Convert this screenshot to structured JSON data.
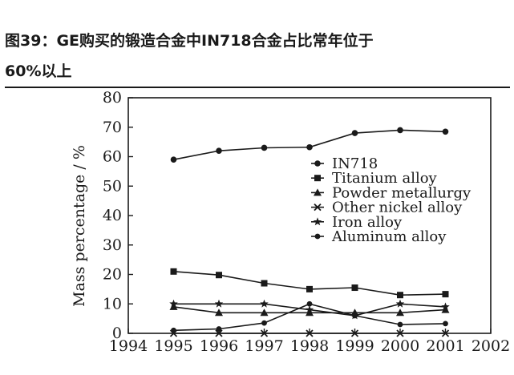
{
  "header": {
    "title_line1": "图39：GE购买的锻造合金中IN718合金占比常年位于",
    "title_line2": "60%以上"
  },
  "chart_data": {
    "type": "line",
    "title": "图39：GE购买的锻造合金中IN718合金占比常年位于60%以上",
    "xlabel": "",
    "ylabel": "Mass percentage / %",
    "xlim": [
      1994,
      2002
    ],
    "ylim": [
      0,
      80
    ],
    "x_ticks": [
      1994,
      1995,
      1996,
      1997,
      1998,
      1999,
      2000,
      2001,
      2002
    ],
    "y_ticks": [
      0,
      10,
      20,
      30,
      40,
      50,
      60,
      70,
      80
    ],
    "x": [
      1995,
      1996,
      1997,
      1998,
      1999,
      2000,
      2001
    ],
    "legend_position": "top-right",
    "grid": false,
    "series": [
      {
        "name": "IN718",
        "marker": "circle",
        "values": [
          59,
          62,
          63,
          63.2,
          68,
          69,
          68.5
        ]
      },
      {
        "name": "Titanium alloy",
        "marker": "square",
        "values": [
          21,
          19.8,
          17,
          15,
          15.5,
          13,
          13.3
        ]
      },
      {
        "name": "Powder metallurgy",
        "marker": "triangle",
        "values": [
          9,
          7,
          7,
          7,
          7,
          7,
          8
        ]
      },
      {
        "name": "Other nickel alloy",
        "marker": "x",
        "values": [
          0,
          0,
          0,
          0,
          0,
          0,
          0
        ]
      },
      {
        "name": "Iron alloy",
        "marker": "star",
        "values": [
          10,
          10,
          10,
          8,
          6,
          10,
          9
        ]
      },
      {
        "name": "Aluminum alloy",
        "marker": "dot",
        "values": [
          1,
          1.5,
          3.5,
          10,
          6,
          3,
          3.3
        ]
      }
    ]
  }
}
